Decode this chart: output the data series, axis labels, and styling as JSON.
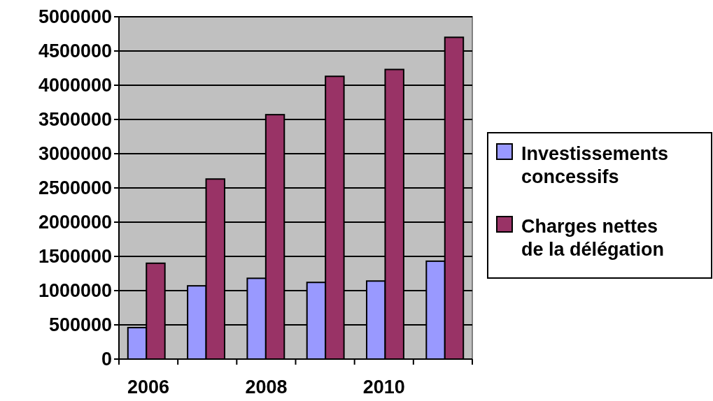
{
  "chart_data": {
    "type": "bar",
    "categories": [
      "2006",
      null,
      "2008",
      null,
      "2010",
      null
    ],
    "series": [
      {
        "name": "Investissements concessifs",
        "color": "#9999ff",
        "values": [
          460000,
          1070000,
          1180000,
          1120000,
          1140000,
          1430000
        ]
      },
      {
        "name": "Charges nettes de la délégation",
        "color": "#993366",
        "values": [
          1400000,
          2630000,
          3570000,
          4130000,
          4230000,
          4700000
        ]
      }
    ],
    "ylim": [
      0,
      5000000
    ],
    "yticks": [
      0,
      500000,
      1000000,
      1500000,
      2000000,
      2500000,
      3000000,
      3500000,
      4000000,
      4500000,
      5000000
    ],
    "grid": "y",
    "legend": "right"
  }
}
